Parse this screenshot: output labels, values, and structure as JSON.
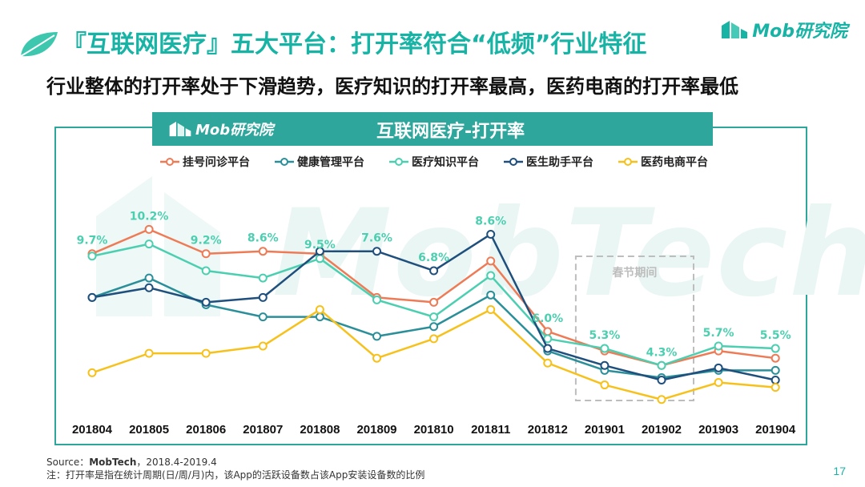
{
  "header": {
    "title": "『互联网医疗』五大平台：打开率符合“低频”行业特征",
    "subtitle": "行业整体的打开率处于下滑趋势，医疗知识的打开率最高，医药电商的打开率最低",
    "brand": "Mob研究院"
  },
  "colors": {
    "accent": "#17b3a5",
    "banner": "#2ea69c"
  },
  "chart_data": {
    "type": "line",
    "title": "互联网医疗-打开率",
    "brand_label": "Mob研究院",
    "watermark": "MobTech",
    "categories": [
      "201804",
      "201805",
      "201806",
      "201807",
      "201808",
      "201809",
      "201810",
      "201811",
      "201812",
      "201901",
      "201902",
      "201903",
      "201904"
    ],
    "series": [
      {
        "name": "挂号问诊平台",
        "color": "#ee7b56",
        "values": [
          8.3,
          9.3,
          8.3,
          8.4,
          8.3,
          6.5,
          6.3,
          8.0,
          5.1,
          4.3,
          3.7,
          4.3,
          4.0
        ]
      },
      {
        "name": "健康管理平台",
        "color": "#2a8f99",
        "values": [
          6.5,
          7.3,
          6.2,
          5.7,
          5.7,
          4.9,
          5.3,
          6.6,
          4.3,
          3.5,
          3.2,
          3.5,
          3.5
        ]
      },
      {
        "name": "医疗知识平台",
        "color": "#4ccfb0",
        "values": [
          8.2,
          8.7,
          7.6,
          7.3,
          8.1,
          6.4,
          5.7,
          7.4,
          4.8,
          4.4,
          3.7,
          4.5,
          4.4
        ]
      },
      {
        "name": "医生助手平台",
        "color": "#1f4f7c",
        "values": [
          6.5,
          6.9,
          6.3,
          6.5,
          8.4,
          8.4,
          7.6,
          9.1,
          4.4,
          3.7,
          3.1,
          3.6,
          3.1
        ]
      },
      {
        "name": "医药电商平台",
        "color": "#f7c11b",
        "values": [
          3.4,
          4.2,
          4.2,
          4.5,
          6.0,
          4.0,
          4.8,
          6.0,
          3.8,
          2.9,
          2.3,
          3.0,
          2.8
        ]
      }
    ],
    "data_labels": [
      "9.7%",
      "10.2%",
      "9.2%",
      "8.6%",
      "9.5%",
      "7.6%",
      "6.8%",
      "8.6%",
      "6.0%",
      "5.3%",
      "4.3%",
      "5.7%",
      "5.5%"
    ],
    "annotation": "春节期间",
    "annotation_range": [
      "201901",
      "201902"
    ],
    "ylim": [
      1.6,
      10.5
    ],
    "legend_position": "top",
    "grid": false
  },
  "footer": {
    "source_prefix": "Source：",
    "source_name": "MobTech",
    "source_period": "，2018.4-2019.4",
    "note": "注：打开率是指在统计周期(日/周/月)内，该App的活跃设备数占该App安装设备数的比例",
    "page": "17"
  }
}
